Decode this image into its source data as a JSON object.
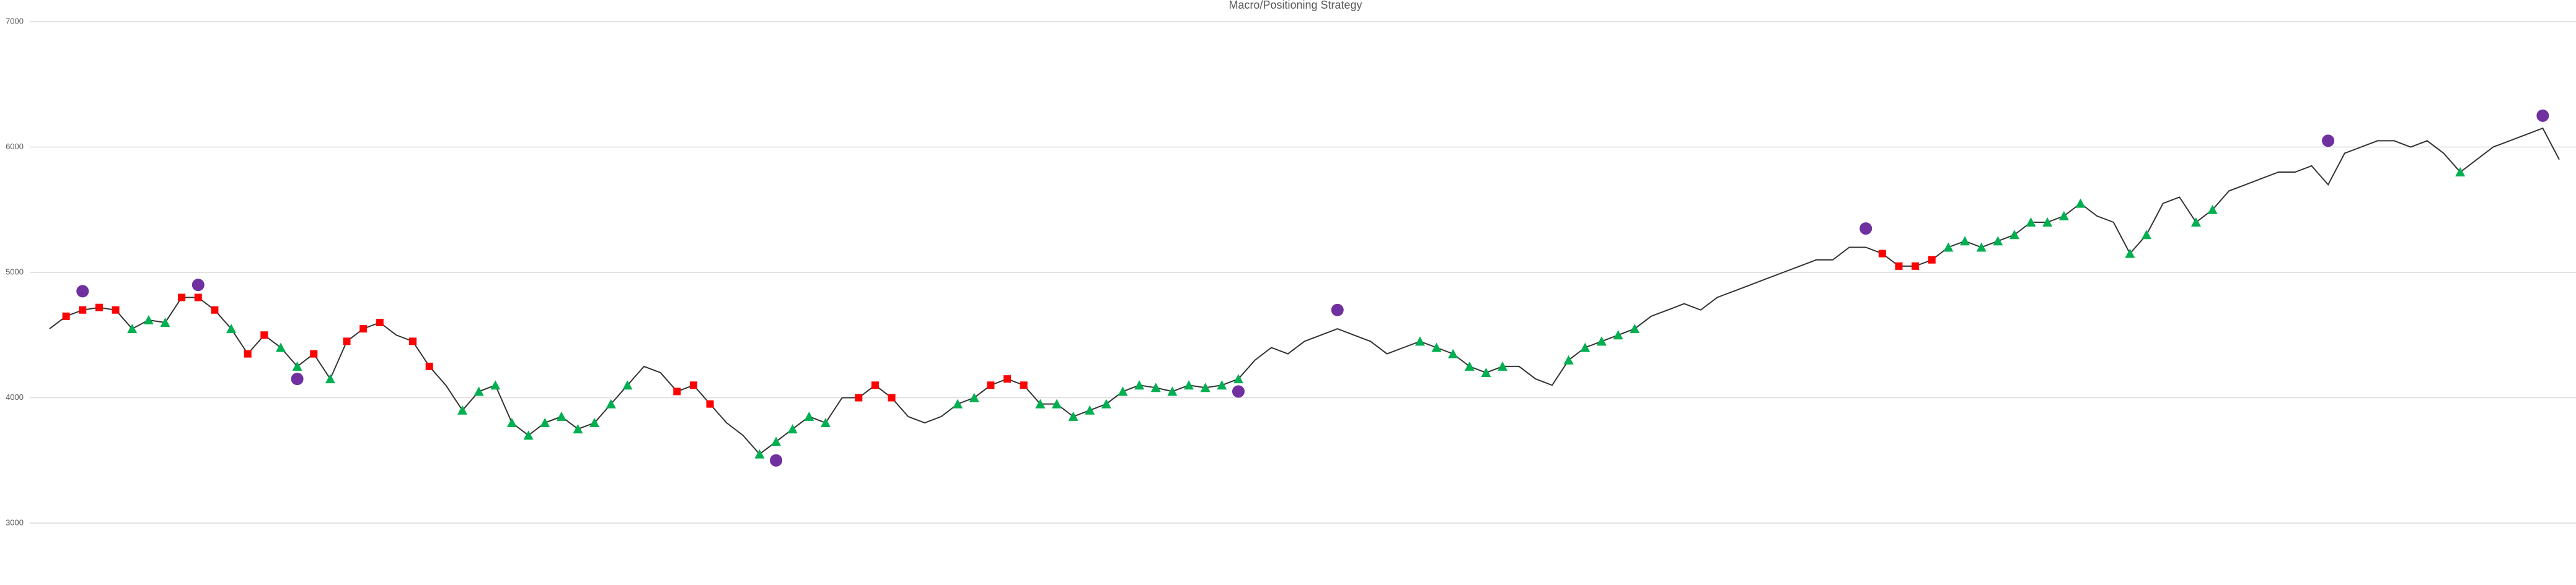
{
  "chart_data": {
    "type": "line",
    "title": "Macro/Positioning Strategy",
    "ylim": [
      3000,
      7000
    ],
    "yticks": [
      3000,
      4000,
      5000,
      6000,
      7000
    ],
    "grid": true,
    "series": [
      {
        "color": "#333333",
        "marker": "none",
        "values": [
          4550,
          4650,
          4700,
          4720,
          4700,
          4550,
          4620,
          4600,
          4800,
          4800,
          4700,
          4550,
          4350,
          4500,
          4400,
          4250,
          4350,
          4150,
          4450,
          4550,
          4600,
          4500,
          4450,
          4250,
          4100,
          3900,
          4050,
          4100,
          3800,
          3700,
          3800,
          3850,
          3750,
          3800,
          3950,
          4100,
          4250,
          4200,
          4050,
          4100,
          3950,
          3800,
          3700,
          3550,
          3650,
          3750,
          3850,
          3800,
          4000,
          4000,
          4100,
          4000,
          3850,
          3800,
          3850,
          3950,
          4000,
          4100,
          4150,
          4100,
          3950,
          3950,
          3850,
          3900,
          3950,
          4050,
          4100,
          4080,
          4050,
          4100,
          4080,
          4100,
          4150,
          4300,
          4400,
          4350,
          4450,
          4500,
          4550,
          4500,
          4450,
          4350,
          4400,
          4450,
          4400,
          4350,
          4250,
          4200,
          4250,
          4250,
          4150,
          4100,
          4300,
          4400,
          4450,
          4500,
          4550,
          4650,
          4700,
          4750,
          4700,
          4800,
          4850,
          4900,
          4950,
          5000,
          5050,
          5100,
          5100,
          5200,
          5200,
          5150,
          5050,
          5050,
          5100,
          5200,
          5250,
          5200,
          5250,
          5300,
          5400,
          5400,
          5450,
          5550,
          5450,
          5400,
          5150,
          5300,
          5550,
          5600,
          5400,
          5500,
          5650,
          5700,
          5750,
          5800,
          5800,
          5850,
          5700,
          5950,
          6000,
          6050,
          6050,
          6000,
          6050,
          5950,
          5800,
          5900,
          6000,
          6050,
          6100,
          6150,
          5900
        ]
      },
      {
        "color": "#ff0000",
        "marker": "square",
        "values": [
          null,
          4650,
          4700,
          4720,
          4700,
          null,
          null,
          null,
          4800,
          4800,
          4700,
          null,
          4350,
          4500,
          null,
          null,
          4350,
          null,
          4450,
          4550,
          4600,
          null,
          4450,
          4250,
          null,
          null,
          null,
          null,
          null,
          null,
          null,
          null,
          null,
          null,
          null,
          null,
          null,
          null,
          4050,
          4100,
          3950,
          null,
          null,
          null,
          null,
          null,
          null,
          null,
          null,
          4000,
          4100,
          4000,
          null,
          null,
          null,
          null,
          null,
          4100,
          4150,
          4100,
          null,
          null,
          null,
          null,
          null,
          null,
          null,
          null,
          null,
          null,
          null,
          null,
          null,
          null,
          null,
          null,
          null,
          null,
          null,
          null,
          null,
          null,
          null,
          null,
          null,
          null,
          null,
          null,
          null,
          null,
          null,
          null,
          null,
          null,
          null,
          null,
          null,
          null,
          null,
          null,
          null,
          null,
          null,
          null,
          null,
          null,
          null,
          null,
          null,
          null,
          null,
          5150,
          5050,
          5050,
          5100,
          null,
          null,
          null,
          null,
          null,
          null,
          null,
          null,
          null,
          null,
          null,
          null,
          null,
          null,
          null,
          null,
          null,
          null,
          null,
          null,
          null,
          null,
          null,
          null,
          null,
          null,
          null,
          null,
          null,
          null,
          null,
          null,
          null,
          null,
          null,
          null,
          null,
          null
        ]
      },
      {
        "color": "#00b050",
        "marker": "triangle",
        "values": [
          null,
          null,
          null,
          null,
          null,
          4550,
          4620,
          4600,
          null,
          null,
          null,
          4550,
          null,
          null,
          4400,
          4250,
          null,
          4150,
          null,
          null,
          null,
          null,
          null,
          null,
          null,
          3900,
          4050,
          4100,
          3800,
          3700,
          3800,
          3850,
          3750,
          3800,
          3950,
          4100,
          null,
          null,
          null,
          null,
          null,
          null,
          null,
          3550,
          3650,
          3750,
          3850,
          3800,
          null,
          null,
          null,
          null,
          null,
          null,
          null,
          3950,
          4000,
          null,
          null,
          null,
          3950,
          3950,
          3850,
          3900,
          3950,
          4050,
          4100,
          4080,
          4050,
          4100,
          4080,
          4100,
          4150,
          null,
          null,
          null,
          null,
          null,
          null,
          null,
          null,
          null,
          null,
          4450,
          4400,
          4350,
          4250,
          4200,
          4250,
          null,
          null,
          null,
          4300,
          4400,
          4450,
          4500,
          4550,
          null,
          null,
          null,
          null,
          null,
          null,
          null,
          null,
          null,
          null,
          null,
          null,
          null,
          null,
          null,
          null,
          null,
          null,
          5200,
          5250,
          5200,
          5250,
          5300,
          5400,
          5400,
          5450,
          5550,
          null,
          null,
          5150,
          5300,
          null,
          null,
          5400,
          5500,
          null,
          null,
          null,
          null,
          null,
          null,
          null,
          null,
          null,
          null,
          null,
          null,
          null,
          null,
          5800,
          null,
          null,
          null,
          null,
          null,
          null
        ]
      },
      {
        "color": "#7030a0",
        "marker": "circle",
        "values": [
          null,
          null,
          4850,
          null,
          null,
          null,
          null,
          null,
          null,
          4900,
          null,
          null,
          null,
          null,
          null,
          4150,
          null,
          null,
          null,
          null,
          null,
          null,
          null,
          null,
          null,
          null,
          null,
          null,
          null,
          null,
          null,
          null,
          null,
          null,
          null,
          null,
          null,
          null,
          null,
          null,
          null,
          null,
          null,
          null,
          3500,
          null,
          null,
          null,
          null,
          null,
          null,
          null,
          null,
          null,
          null,
          null,
          null,
          null,
          null,
          null,
          null,
          null,
          null,
          null,
          null,
          null,
          null,
          null,
          null,
          null,
          null,
          null,
          4050,
          null,
          null,
          null,
          null,
          null,
          4700,
          null,
          null,
          null,
          null,
          null,
          null,
          null,
          null,
          null,
          null,
          null,
          null,
          null,
          null,
          null,
          null,
          null,
          null,
          null,
          null,
          null,
          null,
          null,
          null,
          null,
          null,
          null,
          null,
          null,
          null,
          null,
          5350,
          null,
          null,
          null,
          null,
          null,
          null,
          null,
          null,
          null,
          null,
          null,
          null,
          null,
          null,
          null,
          null,
          null,
          null,
          null,
          null,
          null,
          null,
          null,
          null,
          null,
          null,
          null,
          6050,
          null,
          null,
          null,
          null,
          null,
          null,
          null,
          null,
          null,
          null,
          null,
          null,
          6250,
          null
        ]
      }
    ]
  }
}
